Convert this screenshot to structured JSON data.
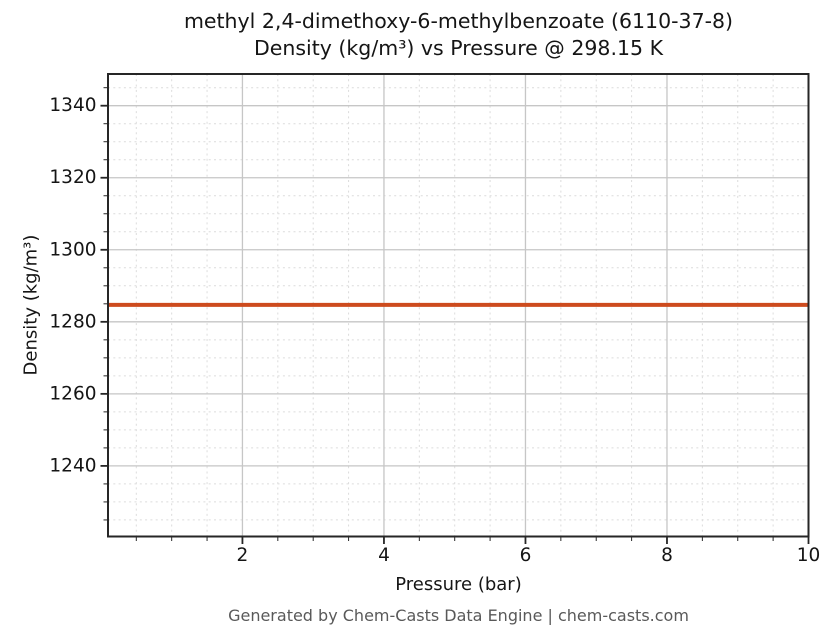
{
  "figure": {
    "title_line1": "methyl 2,4-dimethoxy-6-methylbenzoate (6110-37-8)",
    "title_line2": "Density (kg/m³) vs Pressure @ 298.15 K",
    "footer": "Generated by Chem-Casts Data Engine | chem-casts.com"
  },
  "chart_data": {
    "type": "line",
    "title": "methyl 2,4-dimethoxy-6-methylbenzoate (6110-37-8)\nDensity (kg/m³) vs Pressure @ 298.15 K",
    "xlabel": "Pressure (bar)",
    "ylabel": "Density (kg/m³)",
    "xlim": [
      0.1,
      10
    ],
    "ylim": [
      1220.4,
      1348.8
    ],
    "x_major_ticks": [
      2,
      4,
      6,
      8,
      10
    ],
    "x_minor_step": 0.5,
    "y_major_ticks": [
      1240,
      1260,
      1280,
      1300,
      1320,
      1340
    ],
    "y_minor_step": 5,
    "grid": {
      "major_on": true,
      "minor_on": true
    },
    "legend": "none",
    "series": [
      {
        "name": "density",
        "x": [
          0.1,
          10
        ],
        "y": [
          1284.7,
          1284.7
        ],
        "color": "#cd4b1e",
        "linewidth": 4
      }
    ],
    "colors": {
      "line": "#cd4b1e",
      "major_grid": "#c6c6c6",
      "minor_grid": "#dcdcdc",
      "spine": "#262626",
      "text": "#151515",
      "footer_text": "#595959"
    }
  }
}
